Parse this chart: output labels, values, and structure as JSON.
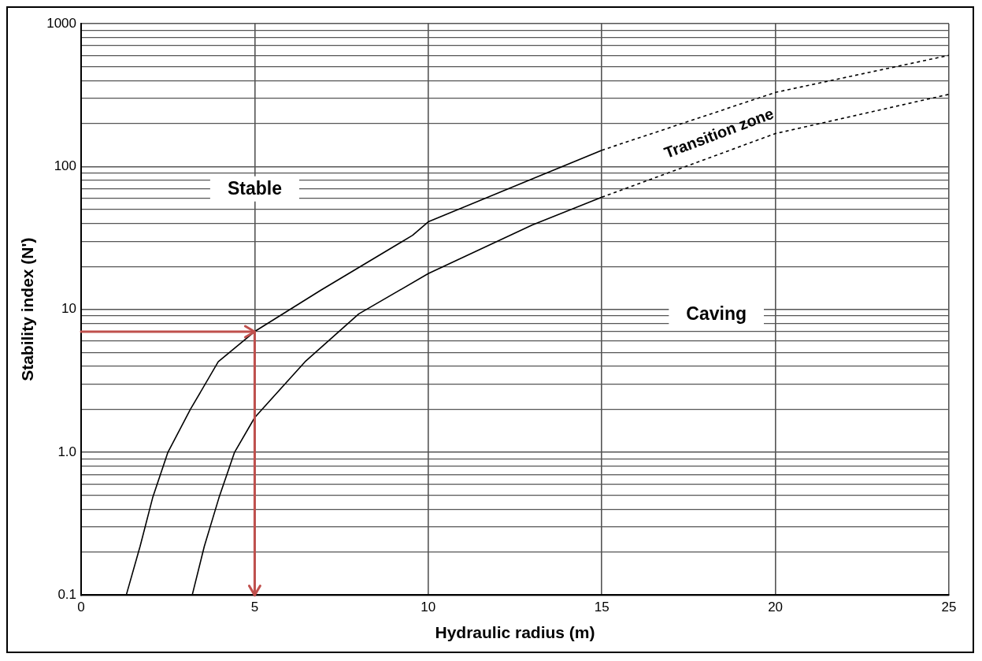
{
  "chart_data": {
    "type": "line",
    "xlabel": "Hydraulic radius (m)",
    "ylabel": "Stability index (N')",
    "log": "y",
    "grid": true,
    "legend": false,
    "marker": "none",
    "xlim": [
      0,
      25
    ],
    "xticks": [
      0,
      5,
      10,
      15,
      20,
      25
    ],
    "ylim": [
      0.1,
      1000
    ],
    "yticks": [
      0.1,
      {
        "value": 0.2,
        "label": null
      },
      {
        "value": 0.3,
        "label": null
      },
      {
        "value": 0.4,
        "label": null
      },
      {
        "value": 0.5,
        "label": null
      },
      {
        "value": 0.6,
        "label": null
      },
      {
        "value": 0.7,
        "label": null
      },
      {
        "value": 0.8,
        "label": null
      },
      {
        "value": 0.9,
        "label": null
      },
      {
        "value": 1,
        "label": "1.0"
      },
      {
        "value": 2,
        "label": null
      },
      {
        "value": 3,
        "label": null
      },
      {
        "value": 4,
        "label": null
      },
      {
        "value": 5,
        "label": null
      },
      {
        "value": 6,
        "label": null
      },
      {
        "value": 7,
        "label": null
      },
      {
        "value": 8,
        "label": null
      },
      {
        "value": 9,
        "label": null
      },
      10,
      {
        "value": 20,
        "label": null
      },
      {
        "value": 30,
        "label": null
      },
      {
        "value": 40,
        "label": null
      },
      {
        "value": 50,
        "label": null
      },
      {
        "value": 60,
        "label": null
      },
      {
        "value": 70,
        "label": null
      },
      {
        "value": 80,
        "label": null
      },
      {
        "value": 90,
        "label": null
      },
      100,
      {
        "value": 200,
        "label": null
      },
      {
        "value": 300,
        "label": null
      },
      {
        "value": 400,
        "label": null
      },
      {
        "value": 500,
        "label": null
      },
      {
        "value": 600,
        "label": null
      },
      {
        "value": 700,
        "label": null
      },
      {
        "value": 800,
        "label": null
      },
      {
        "value": 900,
        "label": null
      },
      1000
    ],
    "series": [
      {
        "color": "#000000",
        "line_style": "solid",
        "x": [
          1.3,
          1.7,
          2.06,
          2.5,
          3.15,
          3.95,
          5,
          6.9,
          9.55,
          10,
          13,
          15
        ],
        "values": [
          0.1,
          0.22,
          0.48,
          1,
          2,
          4.3,
          7,
          13.6,
          33,
          41,
          82,
          130
        ]
      },
      {
        "color": "#000000",
        "line_style": "dashed",
        "x": [
          15,
          20,
          25
        ],
        "values": [
          130,
          330,
          600
        ]
      },
      {
        "color": "#000000",
        "line_style": "solid",
        "x": [
          3.2,
          3.55,
          3.97,
          4.42,
          5,
          6.45,
          8,
          10,
          13,
          15
        ],
        "values": [
          0.1,
          0.22,
          0.48,
          1,
          1.75,
          4.3,
          9.3,
          17.8,
          39,
          61
        ]
      },
      {
        "color": "#000000",
        "line_style": "dashed",
        "x": [
          15,
          20,
          25
        ],
        "values": [
          61,
          170,
          320
        ]
      }
    ],
    "annotations": [
      "Stable",
      "Caving",
      "Transition zone"
    ]
  }
}
